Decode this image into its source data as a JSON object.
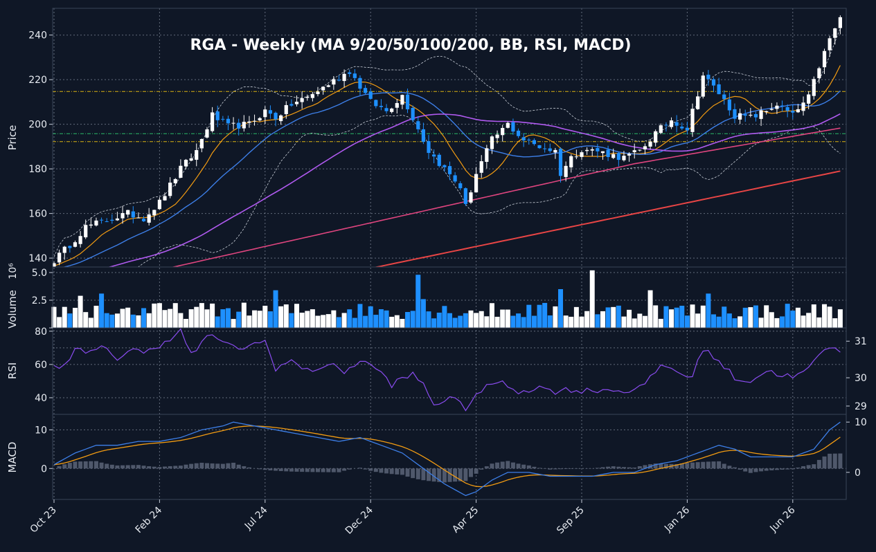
{
  "chart_data": {
    "type": "candlestick",
    "title": "RGA  -  Weekly  (MA 9/20/50/100/200, BB, RSI, MACD)",
    "colors": {
      "background": "#0f1726",
      "up": "#ffffff",
      "down": "#1e90ff",
      "ma9": "#f39c12",
      "ma20": "#3d7fe8",
      "ma50": "#b05af0",
      "ma100": "#e0457f",
      "ma200": "#e84545",
      "bollinger": "#c9cfd8",
      "hline_orange": "#f1c40f",
      "hline_green": "#2ecc71",
      "rsi": "#8a4cf0",
      "macd": "#3d7fe8",
      "signal": "#f39c12",
      "hist": "#5a6478"
    },
    "x_ticks": [
      "Oct 23",
      "Feb 24",
      "Jul 24",
      "Dec 24",
      "Apr 25",
      "Sep 25",
      "Jan 26",
      "Jun 26"
    ],
    "x_tick_index": [
      0,
      20,
      40,
      60,
      80,
      100,
      120,
      140
    ],
    "n_weeks": 150,
    "price_panel": {
      "ylabel": "Price",
      "ylim": [
        136,
        252
      ],
      "yticks": [
        140,
        160,
        180,
        200,
        220,
        240
      ],
      "horizontal_lines": [
        {
          "value": 214.7,
          "color": "#f1c40f"
        },
        {
          "value": 195.8,
          "color": "#2ecc71"
        },
        {
          "value": 192.2,
          "color": "#f1c40f"
        }
      ],
      "close_keypoints": [
        [
          0,
          139
        ],
        [
          3,
          146
        ],
        [
          6,
          154
        ],
        [
          10,
          157
        ],
        [
          14,
          160
        ],
        [
          17,
          158
        ],
        [
          20,
          165
        ],
        [
          24,
          180
        ],
        [
          27,
          188
        ],
        [
          30,
          204
        ],
        [
          33,
          199
        ],
        [
          37,
          200
        ],
        [
          40,
          206
        ],
        [
          42,
          203
        ],
        [
          45,
          209
        ],
        [
          48,
          212
        ],
        [
          52,
          218
        ],
        [
          56,
          224
        ],
        [
          60,
          210
        ],
        [
          63,
          206
        ],
        [
          66,
          213
        ],
        [
          68,
          203
        ],
        [
          71,
          188
        ],
        [
          74,
          180
        ],
        [
          77,
          172
        ],
        [
          78,
          163
        ],
        [
          80,
          178
        ],
        [
          83,
          193
        ],
        [
          86,
          200
        ],
        [
          89,
          193
        ],
        [
          92,
          190
        ],
        [
          95,
          188
        ],
        [
          96,
          178
        ],
        [
          98,
          185
        ],
        [
          100,
          189
        ],
        [
          103,
          188
        ],
        [
          106,
          186
        ],
        [
          108,
          185
        ],
        [
          111,
          188
        ],
        [
          114,
          196
        ],
        [
          117,
          202
        ],
        [
          120,
          198
        ],
        [
          123,
          222
        ],
        [
          126,
          214
        ],
        [
          129,
          204
        ],
        [
          132,
          203
        ],
        [
          135,
          206
        ],
        [
          137,
          209
        ],
        [
          140,
          204
        ],
        [
          143,
          212
        ],
        [
          145,
          226
        ],
        [
          147,
          238
        ],
        [
          149,
          248
        ]
      ]
    },
    "volume_panel": {
      "ylabel": "Volume",
      "exponent": "10⁶",
      "ylim": [
        0,
        5.5
      ],
      "yticks": [
        0,
        2.5,
        5.0
      ],
      "ytick_labels": [
        "",
        "2.5",
        "5.0"
      ],
      "spikes": [
        [
          5,
          2.9
        ],
        [
          9,
          3.1
        ],
        [
          42,
          3.4
        ],
        [
          69,
          4.8
        ],
        [
          70,
          2.6
        ],
        [
          96,
          3.5
        ],
        [
          102,
          5.2
        ],
        [
          113,
          3.4
        ],
        [
          124,
          3.1
        ]
      ]
    },
    "rsi_panel": {
      "ylabel": "RSI",
      "ylim": [
        30,
        82
      ],
      "yticks": [
        40,
        60,
        80
      ],
      "right_yticks": [
        29,
        30,
        31
      ],
      "keypoints": [
        [
          0,
          58
        ],
        [
          2,
          60
        ],
        [
          4,
          70
        ],
        [
          6,
          66
        ],
        [
          9,
          70
        ],
        [
          12,
          64
        ],
        [
          15,
          70
        ],
        [
          17,
          66
        ],
        [
          20,
          72
        ],
        [
          24,
          80
        ],
        [
          26,
          66
        ],
        [
          30,
          79
        ],
        [
          32,
          72
        ],
        [
          36,
          70
        ],
        [
          40,
          74
        ],
        [
          42,
          58
        ],
        [
          45,
          62
        ],
        [
          48,
          56
        ],
        [
          52,
          60
        ],
        [
          55,
          56
        ],
        [
          58,
          62
        ],
        [
          61,
          58
        ],
        [
          64,
          48
        ],
        [
          68,
          54
        ],
        [
          70,
          48
        ],
        [
          72,
          36
        ],
        [
          75,
          40
        ],
        [
          77,
          36
        ],
        [
          78,
          34
        ],
        [
          80,
          42
        ],
        [
          84,
          50
        ],
        [
          88,
          44
        ],
        [
          92,
          46
        ],
        [
          95,
          44
        ],
        [
          98,
          45
        ],
        [
          100,
          44
        ],
        [
          104,
          45
        ],
        [
          108,
          44
        ],
        [
          112,
          47
        ],
        [
          115,
          60
        ],
        [
          118,
          56
        ],
        [
          121,
          52
        ],
        [
          123,
          70
        ],
        [
          126,
          62
        ],
        [
          129,
          52
        ],
        [
          132,
          50
        ],
        [
          135,
          56
        ],
        [
          138,
          54
        ],
        [
          140,
          52
        ],
        [
          143,
          57
        ],
        [
          146,
          70
        ],
        [
          149,
          68
        ]
      ]
    },
    "macd_panel": {
      "ylabel": "MACD",
      "ylim": [
        -8,
        14
      ],
      "yticks": [
        0,
        10
      ],
      "right_yticks": [
        0,
        10
      ],
      "macd_keypoints": [
        [
          0,
          1
        ],
        [
          4,
          4
        ],
        [
          8,
          6
        ],
        [
          12,
          6
        ],
        [
          16,
          7
        ],
        [
          20,
          7
        ],
        [
          24,
          8
        ],
        [
          28,
          10
        ],
        [
          32,
          11
        ],
        [
          34,
          12
        ],
        [
          38,
          11
        ],
        [
          42,
          10
        ],
        [
          46,
          9
        ],
        [
          50,
          8
        ],
        [
          54,
          7
        ],
        [
          58,
          8
        ],
        [
          62,
          6
        ],
        [
          66,
          4
        ],
        [
          70,
          0
        ],
        [
          74,
          -4
        ],
        [
          78,
          -7
        ],
        [
          80,
          -6
        ],
        [
          83,
          -3
        ],
        [
          86,
          -1
        ],
        [
          90,
          -1
        ],
        [
          94,
          -2
        ],
        [
          98,
          -2
        ],
        [
          102,
          -2
        ],
        [
          106,
          -1
        ],
        [
          110,
          -1
        ],
        [
          114,
          1
        ],
        [
          118,
          2
        ],
        [
          122,
          4
        ],
        [
          126,
          6
        ],
        [
          129,
          5
        ],
        [
          132,
          3
        ],
        [
          136,
          3
        ],
        [
          140,
          3
        ],
        [
          144,
          5
        ],
        [
          147,
          10
        ],
        [
          149,
          12
        ]
      ]
    }
  }
}
